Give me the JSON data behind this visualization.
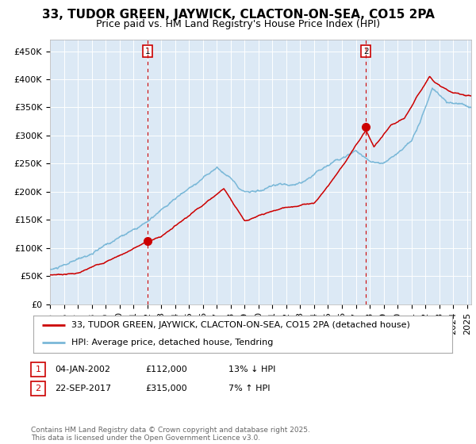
{
  "title": "33, TUDOR GREEN, JAYWICK, CLACTON-ON-SEA, CO15 2PA",
  "subtitle": "Price paid vs. HM Land Registry's House Price Index (HPI)",
  "ylabel_ticks": [
    "£0",
    "£50K",
    "£100K",
    "£150K",
    "£200K",
    "£250K",
    "£300K",
    "£350K",
    "£400K",
    "£450K"
  ],
  "ytick_values": [
    0,
    50000,
    100000,
    150000,
    200000,
    250000,
    300000,
    350000,
    400000,
    450000
  ],
  "ylim": [
    0,
    470000
  ],
  "xlim_start": 1995.0,
  "xlim_end": 2025.3,
  "fig_bg_color": "#ffffff",
  "plot_bg_color": "#dce9f5",
  "grid_color": "#ffffff",
  "hpi_color": "#7ab8d8",
  "price_color": "#cc0000",
  "marker1_date": 2002.02,
  "marker1_price": 112000,
  "marker2_date": 2017.73,
  "marker2_price": 315000,
  "vline_color": "#cc0000",
  "legend_label_price": "33, TUDOR GREEN, JAYWICK, CLACTON-ON-SEA, CO15 2PA (detached house)",
  "legend_label_hpi": "HPI: Average price, detached house, Tendring",
  "annotation1_label": "1",
  "annotation2_label": "2",
  "footer_text": "Contains HM Land Registry data © Crown copyright and database right 2025.\nThis data is licensed under the Open Government Licence v3.0.",
  "table_row1": [
    "1",
    "04-JAN-2002",
    "£112,000",
    "13% ↓ HPI"
  ],
  "table_row2": [
    "2",
    "22-SEP-2017",
    "£315,000",
    "7% ↑ HPI"
  ],
  "title_fontsize": 11,
  "subtitle_fontsize": 9,
  "tick_fontsize": 8,
  "legend_fontsize": 8,
  "table_fontsize": 8,
  "footer_fontsize": 6.5
}
